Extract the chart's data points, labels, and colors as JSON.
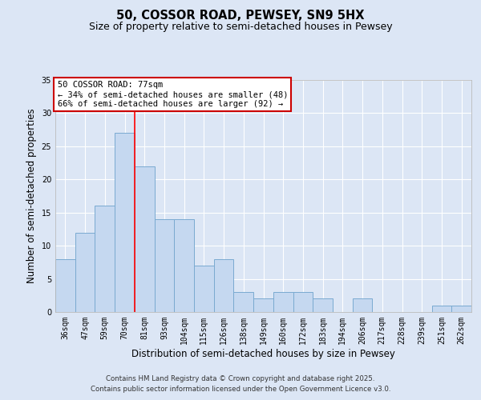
{
  "title_line1": "50, COSSOR ROAD, PEWSEY, SN9 5HX",
  "title_line2": "Size of property relative to semi-detached houses in Pewsey",
  "xlabel": "Distribution of semi-detached houses by size in Pewsey",
  "ylabel": "Number of semi-detached properties",
  "categories": [
    "36sqm",
    "47sqm",
    "59sqm",
    "70sqm",
    "81sqm",
    "93sqm",
    "104sqm",
    "115sqm",
    "126sqm",
    "138sqm",
    "149sqm",
    "160sqm",
    "172sqm",
    "183sqm",
    "194sqm",
    "206sqm",
    "217sqm",
    "228sqm",
    "239sqm",
    "251sqm",
    "262sqm"
  ],
  "values": [
    8,
    12,
    16,
    27,
    22,
    14,
    14,
    7,
    8,
    3,
    2,
    3,
    3,
    2,
    0,
    2,
    0,
    0,
    0,
    1,
    1
  ],
  "bar_color": "#c5d8f0",
  "bar_edge_color": "#7aaad0",
  "bar_edge_width": 0.7,
  "red_line_index": 3.5,
  "annotation_text": "50 COSSOR ROAD: 77sqm\n← 34% of semi-detached houses are smaller (48)\n66% of semi-detached houses are larger (92) →",
  "annotation_box_facecolor": "#ffffff",
  "annotation_box_edgecolor": "#cc0000",
  "ylim": [
    0,
    35
  ],
  "yticks": [
    0,
    5,
    10,
    15,
    20,
    25,
    30,
    35
  ],
  "background_color": "#dce6f5",
  "grid_color": "#ffffff",
  "footer_line1": "Contains HM Land Registry data © Crown copyright and database right 2025.",
  "footer_line2": "Contains public sector information licensed under the Open Government Licence v3.0.",
  "title_fontsize": 10.5,
  "subtitle_fontsize": 9,
  "axis_label_fontsize": 8.5,
  "tick_fontsize": 7,
  "annotation_fontsize": 7.5,
  "footer_fontsize": 6.2
}
